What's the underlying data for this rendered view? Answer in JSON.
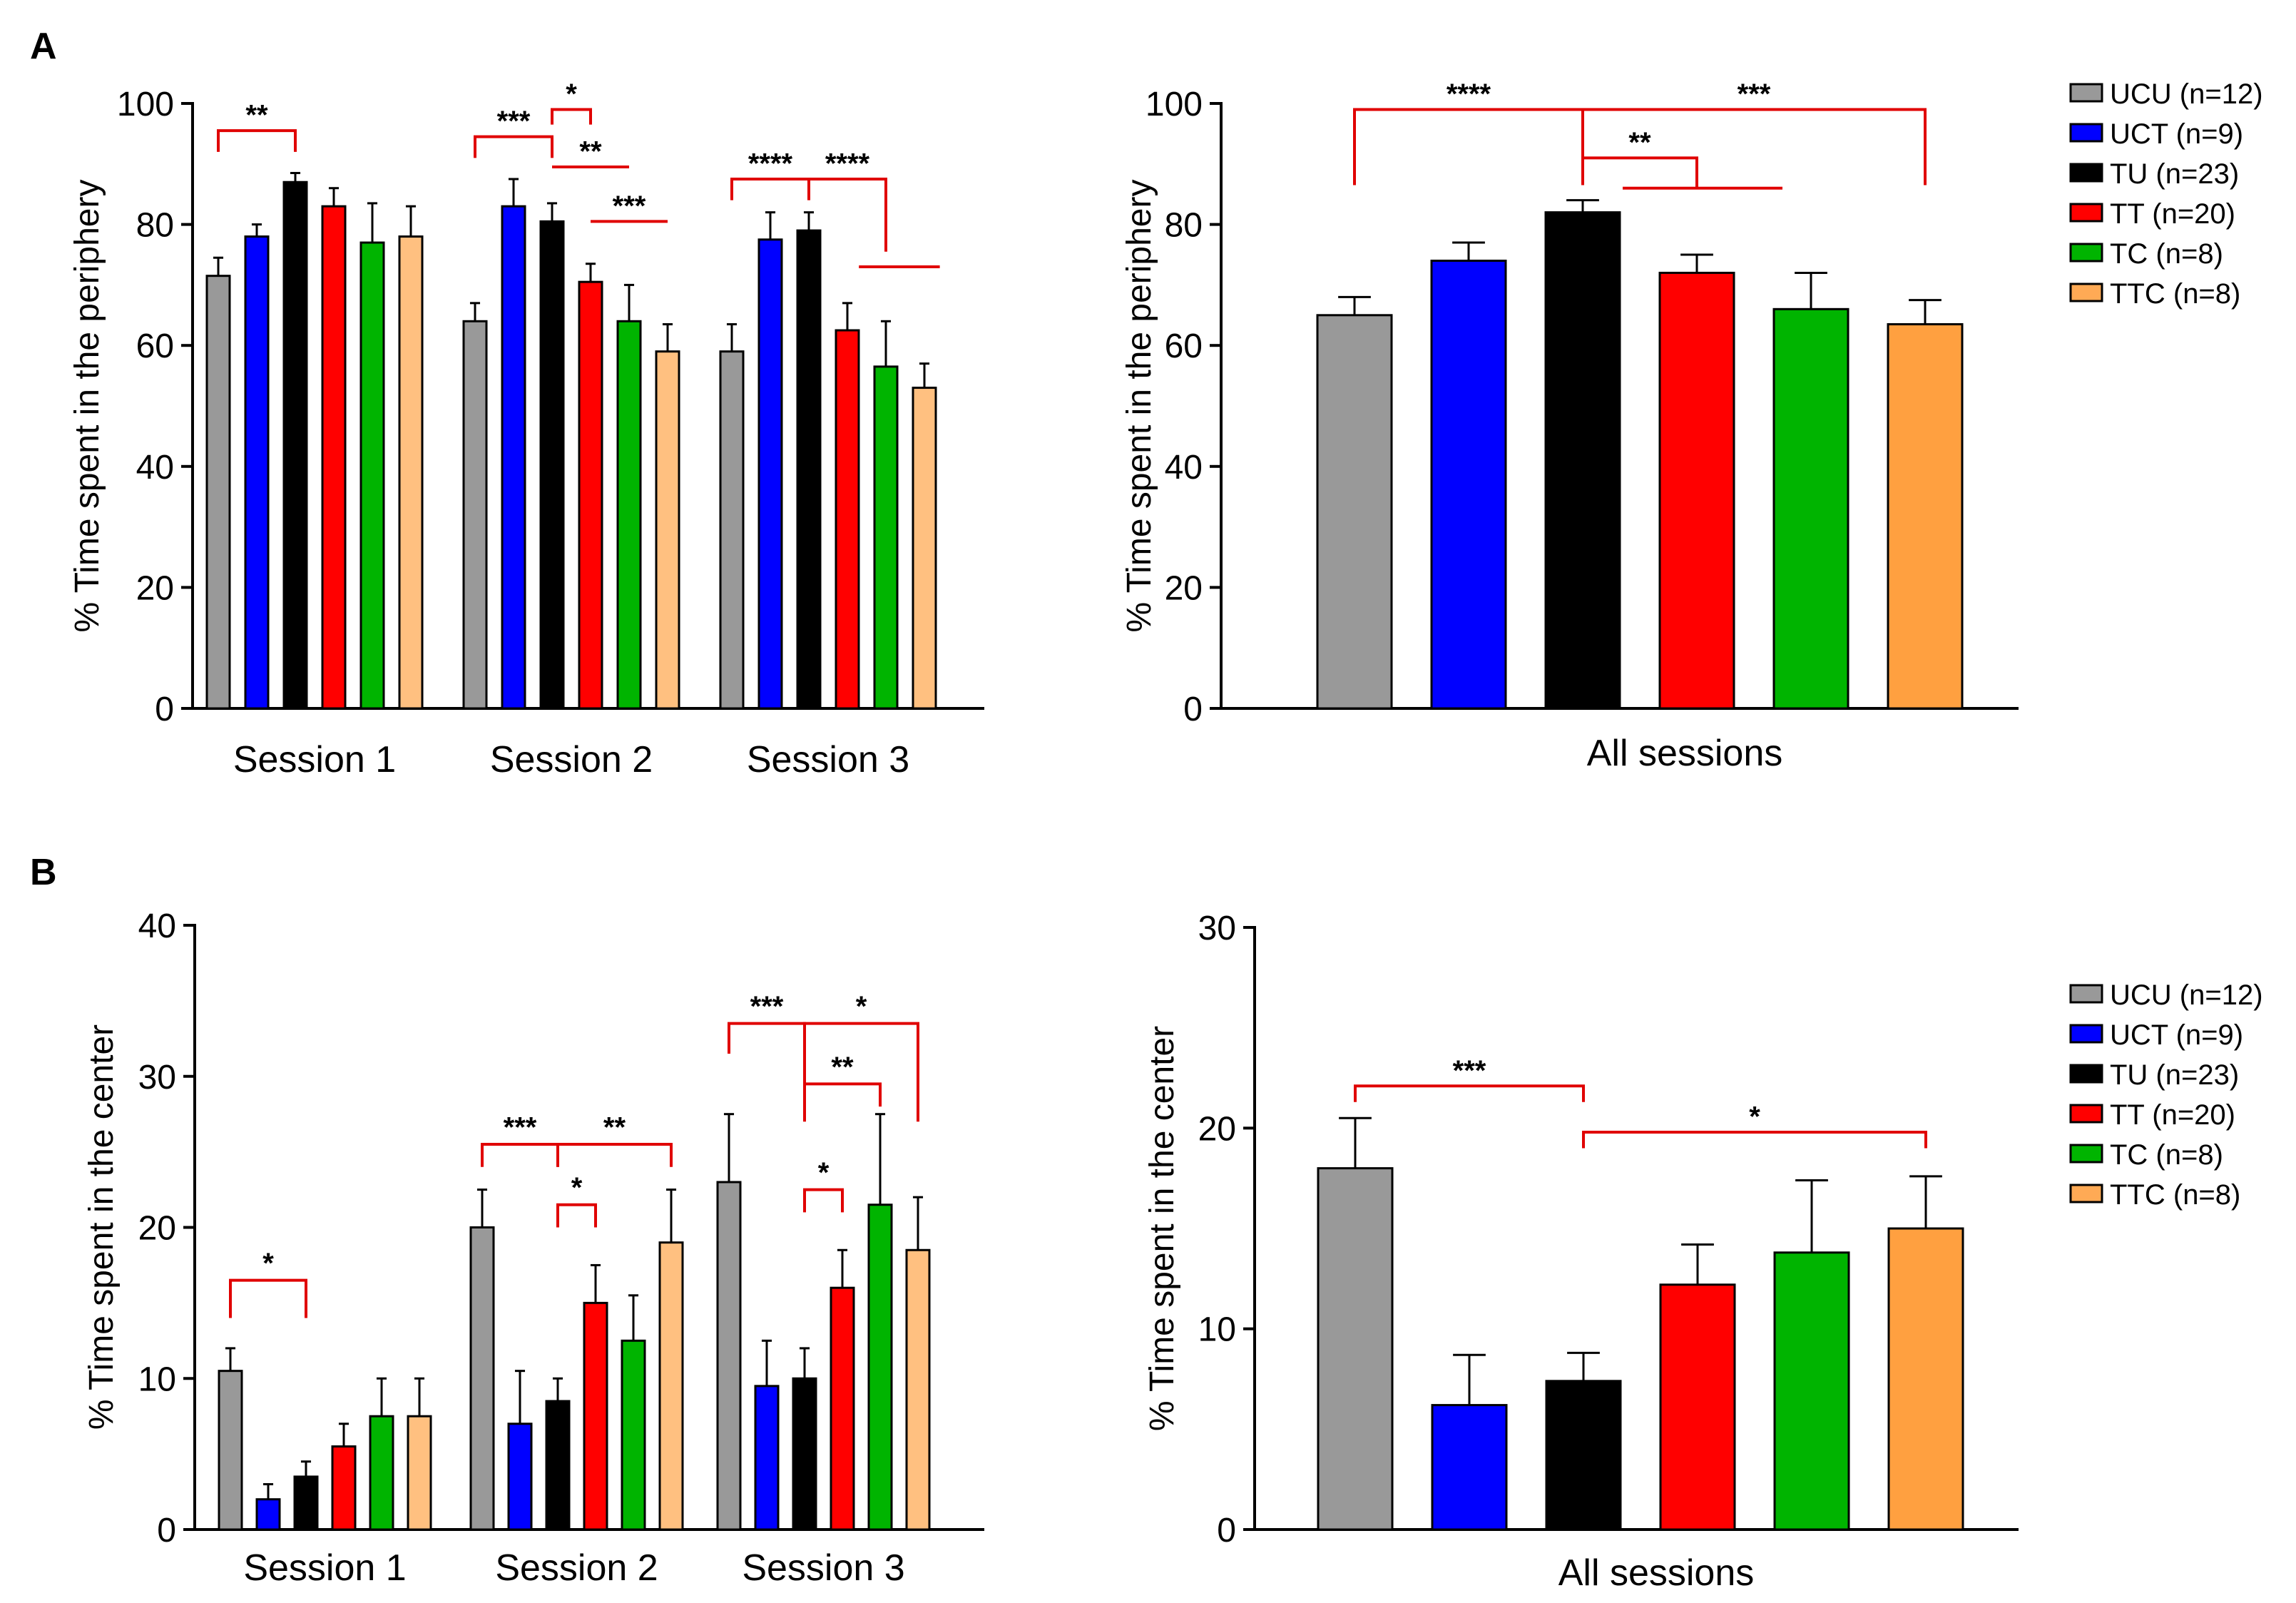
{
  "panel_labels": [
    "A",
    "B"
  ],
  "legend": {
    "entries": [
      "UCU (n=12)",
      "UCT (n=9)",
      "TU (n=23)",
      "TT (n=20)",
      "TC (n=8)",
      "TTC (n=8)"
    ],
    "colors": [
      "#999999",
      "#0000ff",
      "#000000",
      "#ff0000",
      "#00b400",
      "#ffaa55"
    ]
  },
  "chart_data": [
    {
      "id": "A-left",
      "type": "bar",
      "title": "",
      "xlabel": "",
      "ylabel": "% Time spent in the periphery",
      "ylim": [
        0,
        100
      ],
      "yticks": [
        0,
        20,
        40,
        60,
        80,
        100
      ],
      "categories": [
        "Session 1",
        "Session 2",
        "Session 3"
      ],
      "series": [
        {
          "name": "UCU (n=12)",
          "color": "#999999",
          "values": [
            71.5,
            64,
            59
          ],
          "errors": [
            3,
            3,
            4.5
          ]
        },
        {
          "name": "UCT (n=9)",
          "color": "#0000ff",
          "values": [
            78,
            83,
            77.5
          ],
          "errors": [
            2,
            4.5,
            4.5
          ]
        },
        {
          "name": "TU (n=23)",
          "color": "#000000",
          "values": [
            87,
            80.5,
            79
          ],
          "errors": [
            1.5,
            3,
            3
          ]
        },
        {
          "name": "TT (n=20)",
          "color": "#ff0000",
          "values": [
            83,
            70.5,
            62.5
          ],
          "errors": [
            3,
            3,
            4.5
          ]
        },
        {
          "name": "TC (n=8)",
          "color": "#00b400",
          "values": [
            77,
            64,
            56.5
          ],
          "errors": [
            6.5,
            6,
            7.5
          ]
        },
        {
          "name": "TTC (n=8)",
          "color": "#ffc080",
          "values": [
            78,
            59,
            53
          ],
          "errors": [
            5,
            4.5,
            4
          ]
        }
      ],
      "significance": [
        {
          "label": "**",
          "type": "bracket",
          "from": [
            0,
            0
          ],
          "to": [
            0,
            2
          ],
          "y": 95.5,
          "drop": 3.5,
          "label_y": 96.5
        },
        {
          "label": "***",
          "type": "bracket",
          "from": [
            1,
            0
          ],
          "to": [
            1,
            2
          ],
          "y": 94.5,
          "drop": 3.5,
          "label_y": 95.5
        },
        {
          "label": "*",
          "type": "bracket",
          "from": [
            1,
            2
          ],
          "to": [
            1,
            3
          ],
          "y": 99,
          "drop": 2.5,
          "label_y": 100
        },
        {
          "label": "**",
          "type": "line",
          "from": [
            1,
            2
          ],
          "to": [
            1,
            4
          ],
          "y": 89.5,
          "label_y": 90.5
        },
        {
          "label": "***",
          "type": "line",
          "from": [
            1,
            3
          ],
          "to": [
            1,
            5
          ],
          "y": 80.5,
          "label_y": 81.5
        },
        {
          "label": "****",
          "type": "bracket",
          "from": [
            2,
            0
          ],
          "to": [
            2,
            2
          ],
          "y": 87.5,
          "drop": 3.5,
          "label_y": 88.5
        },
        {
          "label": "****",
          "type": "hook",
          "from": [
            2,
            2
          ],
          "to": [
            2,
            4
          ],
          "y": 87.5,
          "drop": 12,
          "stub": 73,
          "label_y": 88.5
        }
      ]
    },
    {
      "id": "A-right",
      "type": "bar",
      "title": "",
      "xlabel": "All sessions",
      "ylabel": "% Time spent in the periphery",
      "ylim": [
        0,
        100
      ],
      "yticks": [
        0,
        20,
        40,
        60,
        80,
        100
      ],
      "categories": [
        "UCU (n=12)",
        "UCT (n=9)",
        "TU (n=23)",
        "TT (n=20)",
        "TC (n=8)",
        "TTC (n=8)"
      ],
      "values": [
        65,
        74,
        82,
        72,
        66,
        63.5
      ],
      "errors": [
        3,
        3,
        2,
        3,
        6,
        4
      ],
      "colors": [
        "#999999",
        "#0000ff",
        "#000000",
        "#ff0000",
        "#00b400",
        "#ffa040"
      ],
      "significance": [
        {
          "label": "****",
          "type": "bracket",
          "from": 0,
          "to": 2,
          "y": 99,
          "drop": 12.5,
          "label_y": 100
        },
        {
          "label": "***",
          "type": "bracket",
          "from": 2,
          "to": 5,
          "y": 99,
          "drop": 12.5,
          "label_y": 100
        },
        {
          "label": "**",
          "type": "tee",
          "from": 2,
          "to": 3,
          "y": 91,
          "drop": 5,
          "stub_to": 4,
          "label_y": 92
        }
      ]
    },
    {
      "id": "B-left",
      "type": "bar",
      "title": "",
      "xlabel": "",
      "ylabel": "% Time spent in the center",
      "ylim": [
        0,
        40
      ],
      "yticks": [
        0,
        10,
        20,
        30,
        40
      ],
      "categories": [
        "Session 1",
        "Session 2",
        "Session 3"
      ],
      "series": [
        {
          "name": "UCU (n=12)",
          "color": "#999999",
          "values": [
            10.5,
            20,
            23
          ],
          "errors": [
            1.5,
            2.5,
            4.5
          ]
        },
        {
          "name": "UCT (n=9)",
          "color": "#0000ff",
          "values": [
            2,
            7,
            9.5
          ],
          "errors": [
            1,
            3.5,
            3
          ]
        },
        {
          "name": "TU (n=23)",
          "color": "#000000",
          "values": [
            3.5,
            8.5,
            10
          ],
          "errors": [
            1,
            1.5,
            2
          ]
        },
        {
          "name": "TT (n=20)",
          "color": "#ff0000",
          "values": [
            5.5,
            15,
            16
          ],
          "errors": [
            1.5,
            2.5,
            2.5
          ]
        },
        {
          "name": "TC (n=8)",
          "color": "#00b400",
          "values": [
            7.5,
            12.5,
            21.5
          ],
          "errors": [
            2.5,
            3,
            6
          ]
        },
        {
          "name": "TTC (n=8)",
          "color": "#ffc080",
          "values": [
            7.5,
            19,
            18.5
          ],
          "errors": [
            2.5,
            3.5,
            3.5
          ]
        }
      ],
      "significance": [
        {
          "label": "*",
          "type": "bracket",
          "from": [
            0,
            0
          ],
          "to": [
            0,
            2
          ],
          "y": 16.5,
          "drop": 2.5,
          "label_y": 17
        },
        {
          "label": "***",
          "type": "bracket",
          "from": [
            1,
            0
          ],
          "to": [
            1,
            2
          ],
          "y": 25.5,
          "drop": 1.5,
          "label_y": 26
        },
        {
          "label": "**",
          "type": "bracket",
          "from": [
            1,
            2
          ],
          "to": [
            1,
            5
          ],
          "y": 25.5,
          "drop": 1.5,
          "label_y": 26
        },
        {
          "label": "*",
          "type": "bracket",
          "from": [
            1,
            2
          ],
          "to": [
            1,
            3
          ],
          "y": 21.5,
          "drop": 1.5,
          "label_y": 22
        },
        {
          "label": "***",
          "type": "bracket",
          "from": [
            2,
            0
          ],
          "to": [
            2,
            2
          ],
          "y": 33.5,
          "drop": 2,
          "label_y": 34
        },
        {
          "label": "*",
          "type": "bracket",
          "from": [
            2,
            2
          ],
          "to": [
            2,
            5
          ],
          "y": 33.5,
          "drop": 6.5,
          "label_y": 34
        },
        {
          "label": "**",
          "type": "bracket",
          "from": [
            2,
            2
          ],
          "to": [
            2,
            4
          ],
          "y": 29.5,
          "drop": 1.5,
          "label_y": 30
        },
        {
          "label": "*",
          "type": "bracket",
          "from": [
            2,
            2
          ],
          "to": [
            2,
            3
          ],
          "y": 22.5,
          "drop": 1.5,
          "label_y": 23
        }
      ]
    },
    {
      "id": "B-right",
      "type": "bar",
      "title": "",
      "xlabel": "All sessions",
      "ylabel": "% Time spent in the center",
      "ylim": [
        0,
        30
      ],
      "yticks": [
        0,
        10,
        20,
        30
      ],
      "categories": [
        "UCU (n=12)",
        "UCT (n=9)",
        "TU (n=23)",
        "TT (n=20)",
        "TC (n=8)",
        "TTC (n=8)"
      ],
      "values": [
        18,
        6.2,
        7.4,
        12.2,
        13.8,
        15
      ],
      "errors": [
        2.5,
        2.5,
        1.4,
        2,
        3.6,
        2.6
      ],
      "colors": [
        "#999999",
        "#0000ff",
        "#000000",
        "#ff0000",
        "#00b400",
        "#ffa040"
      ],
      "significance": [
        {
          "label": "***",
          "type": "bracket",
          "from": 0,
          "to": 2,
          "y": 22.1,
          "drop": 0.8,
          "label_y": 22.4
        },
        {
          "label": "*",
          "type": "bracket",
          "from": 2,
          "to": 5,
          "y": 19.8,
          "drop": 0.8,
          "label_y": 20.1
        }
      ]
    }
  ]
}
